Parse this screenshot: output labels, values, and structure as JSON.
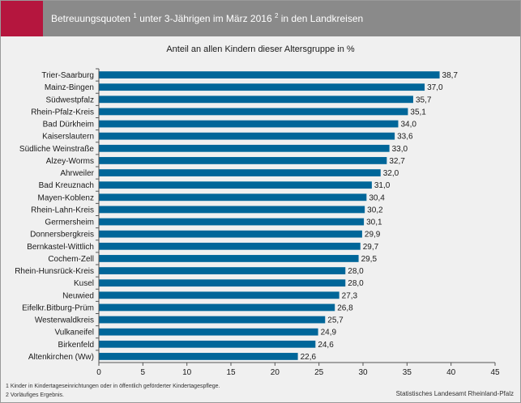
{
  "header": {
    "title_main": "Betreuungsquoten ",
    "title_sup1": "1",
    "title_mid": " unter 3-Jährigen im März 2016 ",
    "title_sup2": "2",
    "title_end": " in den Landkreisen"
  },
  "subtitle": "Anteil an allen Kindern dieser Altersgruppe in %",
  "footnotes": [
    "1 Kinder in Kindertageseinrichtungen oder in öffentlich geförderter Kindertagespflege.",
    "2 Vorläufiges Ergebnis."
  ],
  "source": "Statistisches Landesamt Rheinland-Pfalz",
  "colors": {
    "bar": "#006699",
    "accent": "#b5163e",
    "header": "#8a8a8a"
  },
  "chart_data": {
    "type": "bar",
    "orientation": "horizontal",
    "categories": [
      "Trier-Saarburg",
      "Mainz-Bingen",
      "Südwestpfalz",
      "Rhein-Pfalz-Kreis",
      "Bad Dürkheim",
      "Kaiserslautern",
      "Südliche Weinstraße",
      "Alzey-Worms",
      "Ahrweiler",
      "Bad Kreuznach",
      "Mayen-Koblenz",
      "Rhein-Lahn-Kreis",
      "Germersheim",
      "Donnersbergkreis",
      "Bernkastel-Wittlich",
      "Cochem-Zell",
      "Rhein-Hunsrück-Kreis",
      "Kusel",
      "Neuwied",
      "Eifelkr.Bitburg-Prüm",
      "Westerwaldkreis",
      "Vulkaneifel",
      "Birkenfeld",
      "Altenkirchen (Ww)"
    ],
    "values": [
      38.7,
      37.0,
      35.7,
      35.1,
      34.0,
      33.6,
      33.0,
      32.7,
      32.0,
      31.0,
      30.4,
      30.2,
      30.1,
      29.9,
      29.7,
      29.5,
      28.0,
      28.0,
      27.3,
      26.8,
      25.7,
      24.9,
      24.6,
      22.6
    ],
    "value_labels": [
      "38,7",
      "37,0",
      "35,7",
      "35,1",
      "34,0",
      "33,6",
      "33,0",
      "32,7",
      "32,0",
      "31,0",
      "30,4",
      "30,2",
      "30,1",
      "29,9",
      "29,7",
      "29,5",
      "28,0",
      "28,0",
      "27,3",
      "26,8",
      "25,7",
      "24,9",
      "24,6",
      "22,6"
    ],
    "xticks": [
      0,
      5,
      10,
      15,
      20,
      25,
      30,
      35,
      40,
      45
    ],
    "xlim": [
      0,
      45
    ],
    "grid": false
  }
}
